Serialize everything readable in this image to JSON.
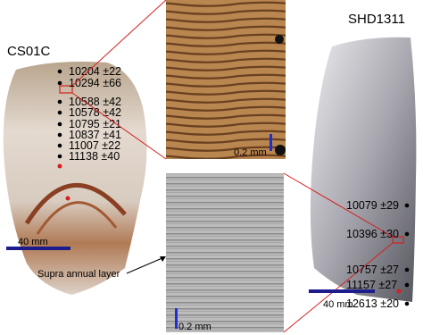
{
  "left_sample": {
    "label": "CS01C",
    "dates": [
      "10204 ±22",
      "10294 ±66",
      "10588 ±42",
      "10578 ±42",
      "10795 ±21",
      "10837 ±41",
      "11007 ±22",
      "11138 ±40"
    ],
    "scale": "40 mm"
  },
  "right_sample": {
    "label": "SHD1311",
    "dates": [
      "10079 ±29",
      "10396 ±30",
      "10757 ±27",
      "11157 ±27",
      "12613 ±20"
    ],
    "scale": "40 mm"
  },
  "top_photo": {
    "scale": "0.2 mm"
  },
  "bottom_photo": {
    "scale": "0.2 mm",
    "annotation": "Supra annual layer"
  }
}
